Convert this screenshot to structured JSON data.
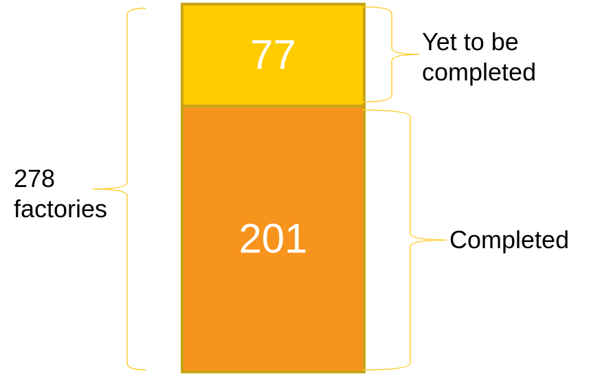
{
  "chart_data": {
    "type": "stacked_bar",
    "annotation": "278 factories",
    "series": [
      {
        "name": "Completed",
        "color": "#f7941d",
        "values": [
          201
        ]
      },
      {
        "name": "Yet to be completed",
        "color": "#ffcc00",
        "values": [
          77
        ]
      }
    ]
  }
}
